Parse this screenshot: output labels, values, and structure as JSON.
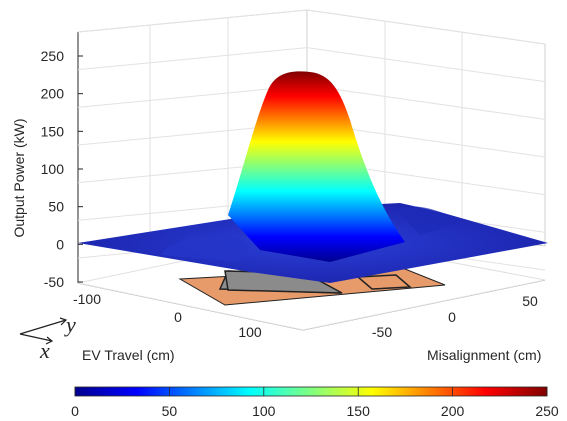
{
  "chart_data": {
    "type": "surface",
    "zlabel": "Output Power (kW)",
    "xlabel": "EV Travel (cm)",
    "ylabel": "Misalignment (cm)",
    "zlim": [
      -50,
      250
    ],
    "z_ticks": [
      "250",
      "200",
      "150",
      "100",
      "50",
      "0",
      "-50"
    ],
    "x_ticks": [
      "-100",
      "0",
      "100"
    ],
    "y_ticks": [
      "-50",
      "0",
      "50"
    ],
    "peak_power": 225,
    "base_power": 0,
    "colorbar": {
      "colormap": "jet",
      "range": [
        0,
        250
      ],
      "ticks": [
        "0",
        "50",
        "100",
        "150",
        "200",
        "250"
      ]
    },
    "axis_indicator": {
      "x": "x",
      "y": "y"
    },
    "grid": true
  }
}
